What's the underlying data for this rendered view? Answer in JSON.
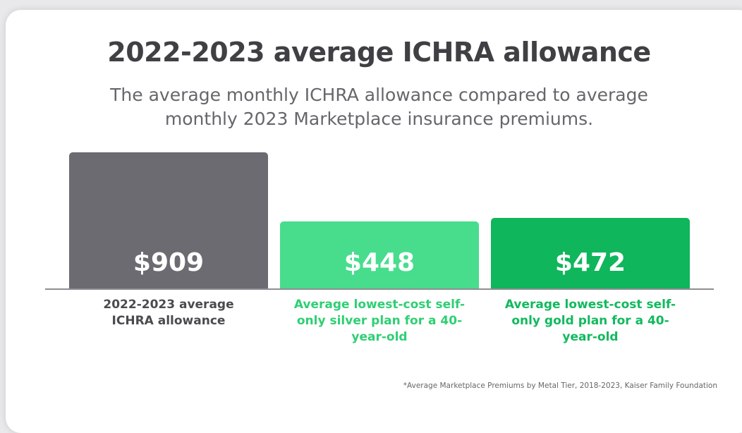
{
  "chart_data": {
    "type": "bar",
    "title": "2022-2023 average ICHRA allowance",
    "subtitle": "The average monthly ICHRA allowance compared to average monthly 2023 Marketplace insurance premiums.",
    "categories": [
      "2022-2023 average ICHRA allowance",
      "Average lowest-cost self-only silver plan for a 40-year-old",
      "Average lowest-cost self-only gold plan for a 40-year-old"
    ],
    "values": [
      909,
      448,
      472
    ],
    "value_labels": [
      "$909",
      "$448",
      "$472"
    ],
    "colors": [
      "#6c6b71",
      "#47dd8d",
      "#0fb65b"
    ],
    "label_colors": [
      "#4a4a4f",
      "#2fcf74",
      "#12b95e"
    ],
    "footnote": "*Average Marketplace Premiums by Metal Tier, 2018-2023, Kaiser Family Foundation"
  }
}
